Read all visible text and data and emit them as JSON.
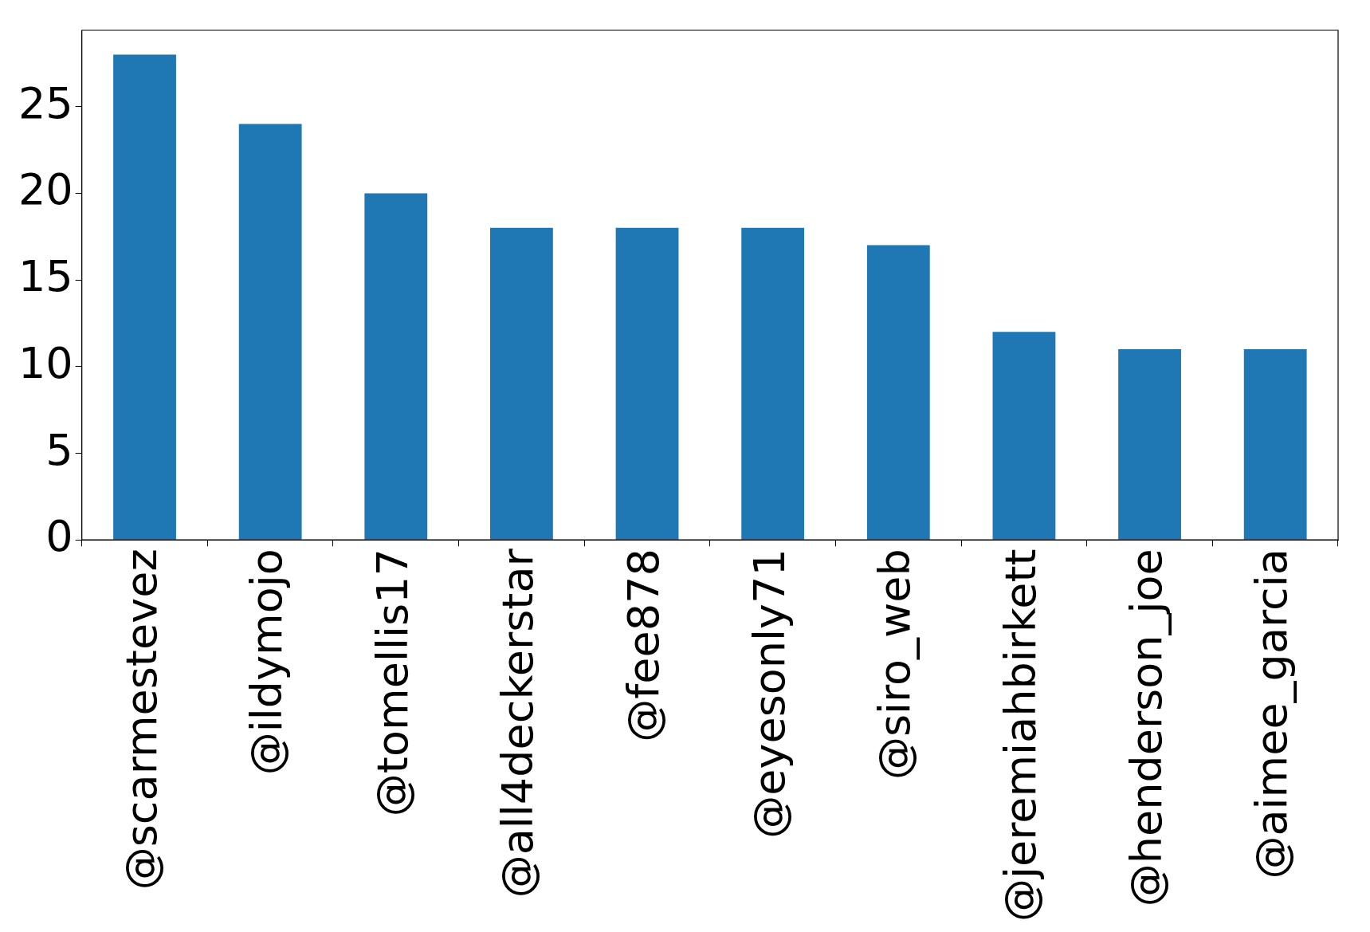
{
  "chart_data": {
    "type": "bar",
    "categories": [
      "@scarmestevez",
      "@ildymojo",
      "@tomellis17",
      "@all4deckerstar",
      "@fee878",
      "@eyesonly71",
      "@siro_web",
      "@jeremiahbirkett",
      "@henderson_joe",
      "@aimee_garcia"
    ],
    "values": [
      28,
      24,
      20,
      18,
      18,
      18,
      17,
      12,
      11,
      11
    ],
    "color": "#1f77b4",
    "ylim": [
      0,
      29.4
    ],
    "yticks": [
      0,
      5,
      10,
      15,
      20,
      25
    ],
    "grid": false,
    "legend": false
  }
}
